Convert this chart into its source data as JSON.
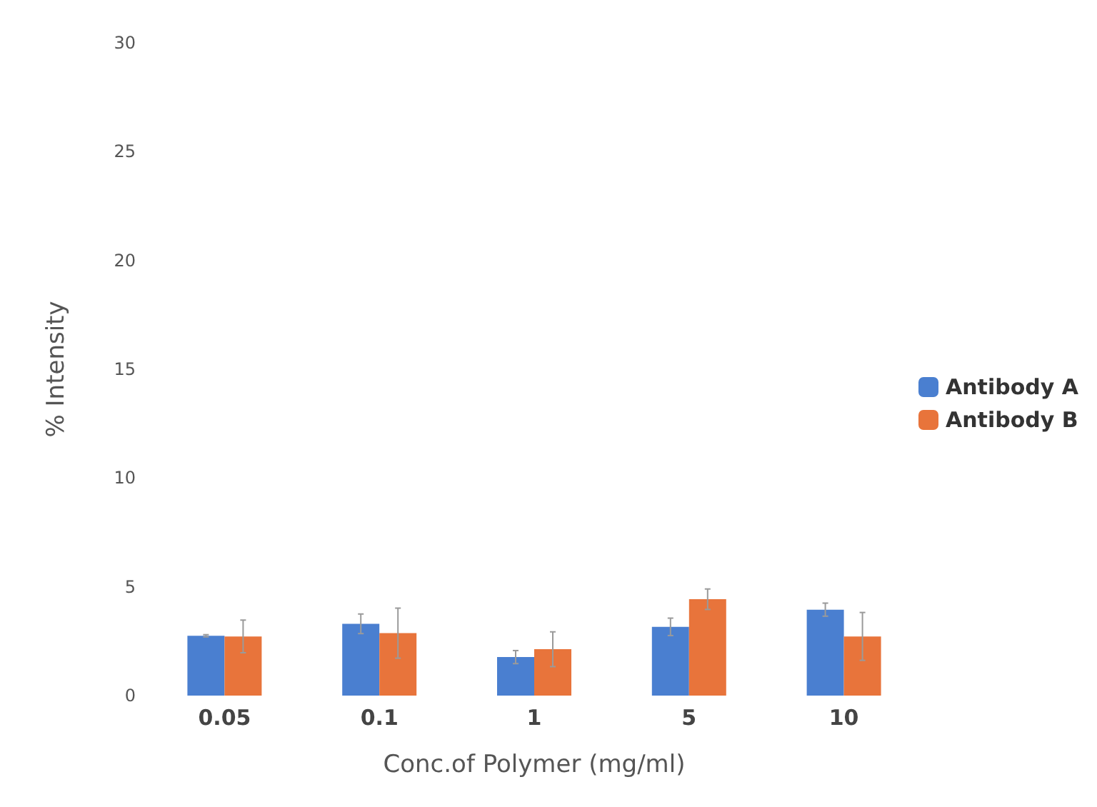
{
  "chart_data": {
    "type": "bar",
    "categories": [
      "0.05",
      "0.1",
      "1",
      "5",
      "10"
    ],
    "xlabel": "Conc.of Polymer (mg/ml)",
    "ylabel": "% Intensity",
    "ylim": [
      0,
      30
    ],
    "yticks": [
      0,
      5,
      10,
      15,
      20,
      25,
      30
    ],
    "grid": false,
    "legend": "right",
    "series": [
      {
        "name": "Antibody A",
        "color": "#4a7fd0",
        "values": [
          2.75,
          3.3,
          1.77,
          3.16,
          3.95
        ],
        "errors": [
          0.05,
          0.45,
          0.3,
          0.4,
          0.3
        ]
      },
      {
        "name": "Antibody B",
        "color": "#e8743b",
        "values": [
          2.72,
          2.87,
          2.13,
          4.43,
          2.72
        ],
        "errors": [
          0.75,
          1.15,
          0.8,
          0.47,
          1.1
        ]
      }
    ]
  }
}
